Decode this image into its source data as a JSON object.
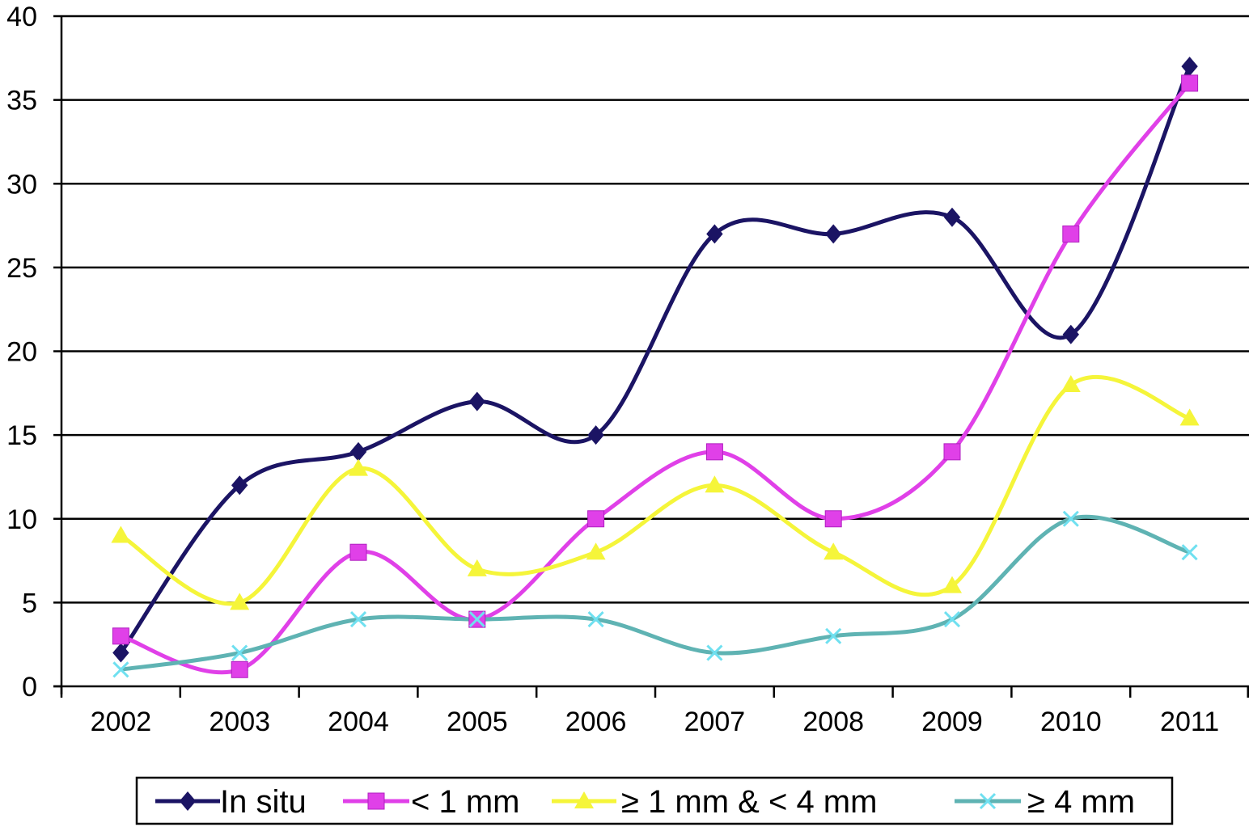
{
  "chart_data": {
    "type": "line",
    "title": "",
    "xlabel": "",
    "ylabel": "",
    "categories": [
      "2002",
      "2003",
      "2004",
      "2005",
      "2006",
      "2007",
      "2008",
      "2009",
      "2010",
      "2011"
    ],
    "ylim": [
      0,
      40
    ],
    "yticks": [
      "0",
      "5",
      "10",
      "15",
      "20",
      "25",
      "30",
      "35",
      "40"
    ],
    "grid": "horizontal",
    "smooth": true,
    "legend_position": "bottom",
    "series": [
      {
        "name": "In situ",
        "marker": "diamond",
        "color": "#1b1464",
        "values": [
          2,
          12,
          14,
          17,
          15,
          27,
          27,
          28,
          21,
          37
        ]
      },
      {
        "name": "< 1 mm",
        "marker": "square",
        "color": "#e040e8",
        "values": [
          3,
          1,
          8,
          4,
          10,
          14,
          10,
          14,
          27,
          36
        ]
      },
      {
        "name": "≥ 1 mm & < 4 mm",
        "marker": "triangle",
        "color": "#f5f53a",
        "values": [
          9,
          5,
          13,
          7,
          8,
          12,
          8,
          6,
          18,
          16
        ]
      },
      {
        "name": "≥ 4 mm",
        "marker": "x",
        "color": "#5fb3b3",
        "marker_color": "#6fe0f0",
        "values": [
          1,
          2,
          4,
          4,
          4,
          2,
          3,
          4,
          10,
          8
        ]
      }
    ]
  }
}
